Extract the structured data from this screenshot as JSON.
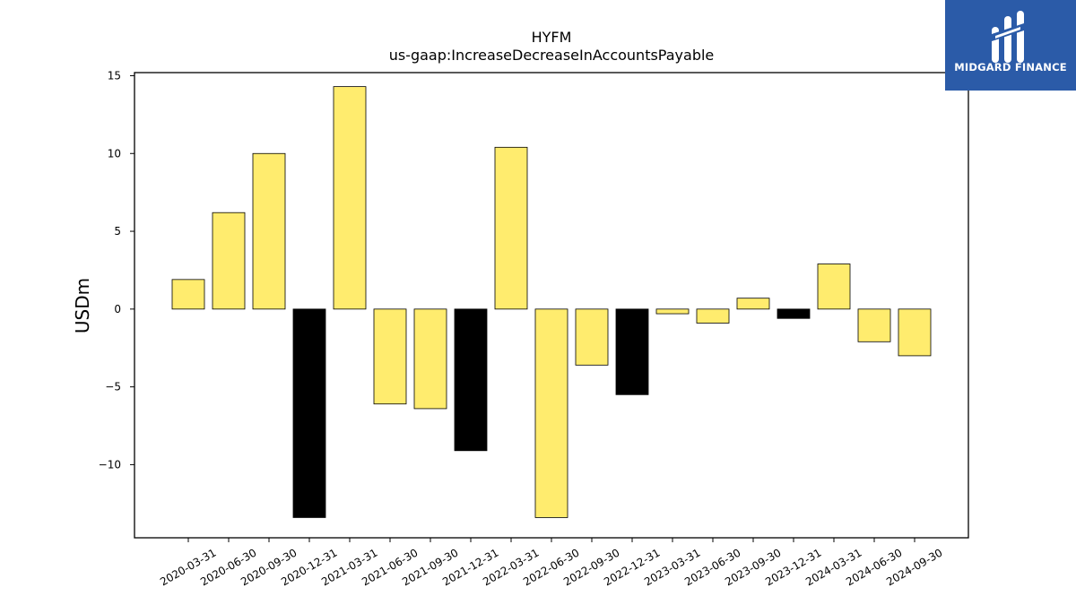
{
  "chart_data": {
    "type": "bar",
    "title": "HYFM",
    "subtitle": "us-gaap:IncreaseDecreaseInAccountsPayable",
    "xlabel": "",
    "ylabel": "USDm",
    "ylim": [
      -14.7,
      15.2
    ],
    "yticks": [
      15,
      10,
      5,
      0,
      -5,
      -10
    ],
    "ytick_labels": [
      "15",
      "10",
      "5",
      "0",
      "−5",
      "−10"
    ],
    "grid": false,
    "categories": [
      "2020-03-31",
      "2020-06-30",
      "2020-09-30",
      "2020-12-31",
      "2021-03-31",
      "2021-06-30",
      "2021-09-30",
      "2021-12-31",
      "2022-03-31",
      "2022-06-30",
      "2022-09-30",
      "2022-12-31",
      "2023-03-31",
      "2023-06-30",
      "2023-09-30",
      "2023-12-31",
      "2024-03-31",
      "2024-06-30",
      "2024-09-30"
    ],
    "values": [
      1.9,
      6.2,
      10.0,
      -13.4,
      14.3,
      -6.1,
      -6.4,
      -9.1,
      10.4,
      -13.4,
      -3.6,
      -5.5,
      -0.3,
      -0.9,
      0.7,
      -0.6,
      2.9,
      -2.1,
      -3.0
    ],
    "bar_colors": [
      "#ffec6e",
      "#ffec6e",
      "#ffec6e",
      "#000000",
      "#ffec6e",
      "#ffec6e",
      "#ffec6e",
      "#000000",
      "#ffec6e",
      "#ffec6e",
      "#ffec6e",
      "#000000",
      "#ffec6e",
      "#ffec6e",
      "#ffec6e",
      "#000000",
      "#ffec6e",
      "#ffec6e",
      "#ffec6e"
    ]
  },
  "logo": {
    "text": "MIDGARD FINANCE",
    "background": "#2b5ba8"
  }
}
